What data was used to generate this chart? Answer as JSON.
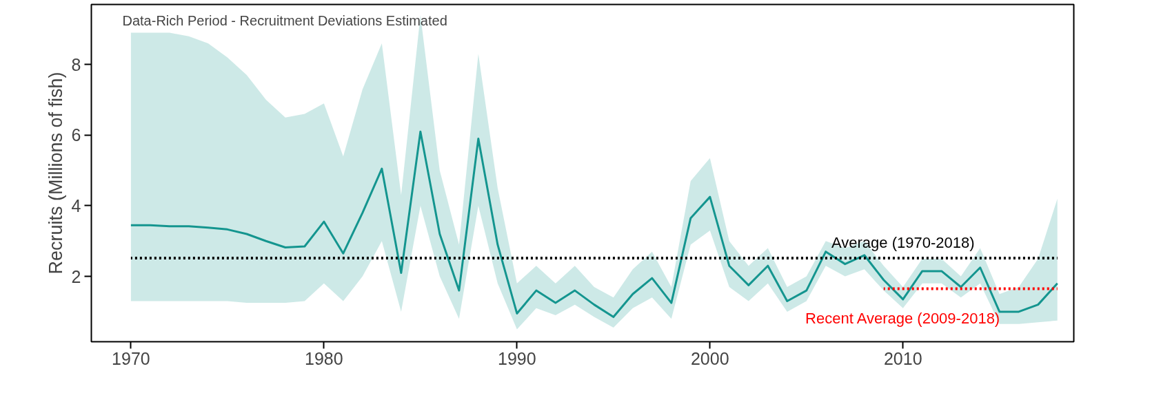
{
  "chart_data": {
    "type": "line",
    "ylabel": "Recruits (Millions of fish)",
    "xlim": [
      1967.95,
      2018.85
    ],
    "ylim": [
      0.15,
      9.7
    ],
    "xticks": [
      1970,
      1980,
      1990,
      2000,
      2010
    ],
    "yticks": [
      2,
      4,
      6,
      8
    ],
    "grid": false,
    "legend": false,
    "marker": "none",
    "series": [
      {
        "color": "#14958f",
        "line_style": "solid",
        "x": [
          1970,
          1971,
          1972,
          1973,
          1974,
          1975,
          1976,
          1977,
          1978,
          1979,
          1980,
          1981,
          1982,
          1983,
          1984,
          1985,
          1986,
          1987,
          1988,
          1989,
          1990,
          1991,
          1992,
          1993,
          1994,
          1995,
          1996,
          1997,
          1998,
          1999,
          2000,
          2001,
          2002,
          2003,
          2004,
          2005,
          2006,
          2007,
          2008,
          2009,
          2010,
          2011,
          2012,
          2013,
          2014,
          2015,
          2016,
          2017,
          2018
        ],
        "values": [
          3.45,
          3.45,
          3.42,
          3.42,
          3.38,
          3.33,
          3.2,
          3.0,
          2.82,
          2.85,
          3.55,
          2.65,
          3.8,
          5.05,
          2.1,
          6.1,
          3.2,
          1.6,
          5.9,
          2.9,
          0.95,
          1.6,
          1.25,
          1.6,
          1.2,
          0.85,
          1.5,
          1.95,
          1.25,
          3.65,
          4.25,
          2.3,
          1.75,
          2.3,
          1.3,
          1.6,
          2.7,
          2.35,
          2.6,
          1.9,
          1.35,
          2.15,
          2.15,
          1.7,
          2.25,
          1.0,
          1.0,
          1.2,
          1.8
        ],
        "lower": [
          1.3,
          1.3,
          1.3,
          1.3,
          1.3,
          1.3,
          1.25,
          1.25,
          1.25,
          1.3,
          1.8,
          1.3,
          2.0,
          3.0,
          1.0,
          4.0,
          2.0,
          0.8,
          4.0,
          1.8,
          0.5,
          1.1,
          0.9,
          1.2,
          0.85,
          0.55,
          1.1,
          1.4,
          0.8,
          2.9,
          3.3,
          1.7,
          1.3,
          1.8,
          1.0,
          1.3,
          2.3,
          2.0,
          2.2,
          1.6,
          1.1,
          1.8,
          1.8,
          1.4,
          1.8,
          0.65,
          0.65,
          0.7,
          0.75
        ],
        "upper": [
          8.9,
          8.9,
          8.9,
          8.8,
          8.6,
          8.2,
          7.7,
          7.0,
          6.5,
          6.6,
          6.9,
          5.4,
          7.3,
          8.6,
          4.3,
          9.4,
          5.0,
          2.9,
          8.3,
          4.5,
          1.8,
          2.3,
          1.8,
          2.3,
          1.7,
          1.4,
          2.2,
          2.7,
          1.7,
          4.7,
          5.35,
          3.0,
          2.3,
          2.8,
          1.7,
          2.0,
          3.0,
          2.8,
          3.0,
          2.3,
          1.7,
          2.5,
          2.5,
          2.0,
          2.8,
          1.5,
          1.7,
          2.5,
          4.2
        ]
      },
      {
        "name": "Average (1970-2018)",
        "color": "#000000",
        "line_style": "dotted",
        "x": [
          1970,
          2018
        ],
        "values": [
          2.52,
          2.52
        ]
      },
      {
        "name": "Recent Average (2009-2018)",
        "color": "#ff0000",
        "line_style": "dotted",
        "x": [
          2009,
          2018
        ],
        "values": [
          1.65,
          1.65
        ]
      }
    ],
    "annotations": [
      "Data-Rich Period - Recruitment Deviations Estimated"
    ]
  }
}
